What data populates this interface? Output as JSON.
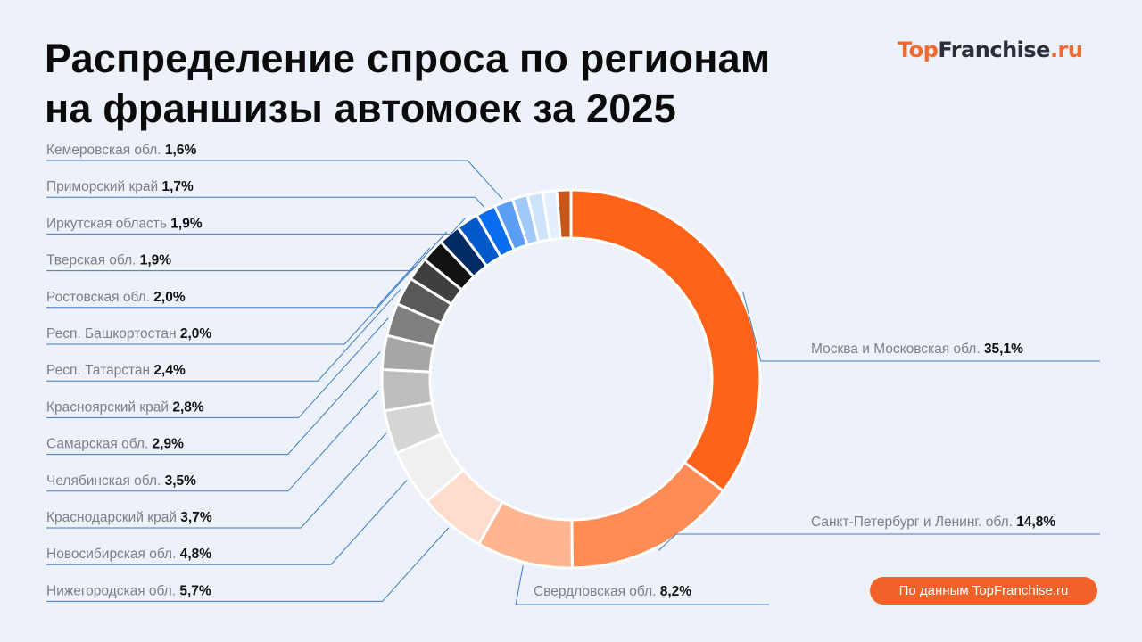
{
  "title_line1": "Распределение спроса по регионам",
  "title_line2": "на франшизы автомоек за 2025",
  "logo": {
    "part1": "Top",
    "part2": "Franchise",
    "part3": ".ru"
  },
  "source_button": "По данным TopFranchise.ru",
  "colors": {
    "leader_line": "#3b7ac4",
    "accent": "#f0622a",
    "background": "#ecf1fa"
  },
  "chart_data": {
    "type": "pie",
    "variant": "donut",
    "title": "Распределение спроса по регионам на франшизы автомоек за 2025",
    "unit": "%",
    "slices": [
      {
        "name": "Москва и Московская обл.",
        "value": 35.1,
        "label": "35,1%",
        "color": "#ff6319",
        "side": "right"
      },
      {
        "name": "Санкт-Петербург и Ленинг. обл.",
        "value": 14.8,
        "label": "14,8%",
        "color": "#ff8c55",
        "side": "right"
      },
      {
        "name": "Свердловская обл.",
        "value": 8.2,
        "label": "8,2%",
        "color": "#ffb690",
        "side": "bottom"
      },
      {
        "name": "Нижегородская обл.",
        "value": 5.7,
        "label": "5,7%",
        "color": "#ffdccb",
        "side": "left"
      },
      {
        "name": "Новосибирская обл.",
        "value": 4.8,
        "label": "4,8%",
        "color": "#f0f0f0",
        "side": "left"
      },
      {
        "name": "Краснодарский край",
        "value": 3.7,
        "label": "3,7%",
        "color": "#d6d6d6",
        "side": "left"
      },
      {
        "name": "Челябинская обл.",
        "value": 3.5,
        "label": "3,5%",
        "color": "#bdbdbd",
        "side": "left"
      },
      {
        "name": "Самарская обл.",
        "value": 2.9,
        "label": "2,9%",
        "color": "#a6a6a6",
        "side": "left"
      },
      {
        "name": "Красноярский край",
        "value": 2.8,
        "label": "2,8%",
        "color": "#7f7f7f",
        "side": "left"
      },
      {
        "name": "Респ. Татарстан",
        "value": 2.4,
        "label": "2,4%",
        "color": "#595959",
        "side": "left"
      },
      {
        "name": "Респ. Башкортостан",
        "value": 2.0,
        "label": "2,0%",
        "color": "#3f3f3f",
        "side": "left"
      },
      {
        "name": "Ростовская обл.",
        "value": 2.0,
        "label": "2,0%",
        "color": "#111111",
        "side": "left"
      },
      {
        "name": "Тверская обл.",
        "value": 1.9,
        "label": "1,9%",
        "color": "#002a63",
        "side": "left"
      },
      {
        "name": "Иркутская область",
        "value": 1.9,
        "label": "1,9%",
        "color": "#0059c8",
        "side": "left"
      },
      {
        "name": "Приморский край",
        "value": 1.7,
        "label": "1,7%",
        "color": "#0a6cf0",
        "side": "left"
      },
      {
        "name": "Кемеровская обл.",
        "value": 1.6,
        "label": "1,6%",
        "color": "#5a9ef5",
        "side": "left"
      },
      {
        "value": 1.3,
        "color": "#a0c8f8"
      },
      {
        "value": 1.3,
        "color": "#cde2fb"
      },
      {
        "value": 1.2,
        "color": "#e4effd"
      },
      {
        "value": 1.2,
        "color": "#c9561a"
      }
    ],
    "legend": "leader-line labels"
  }
}
